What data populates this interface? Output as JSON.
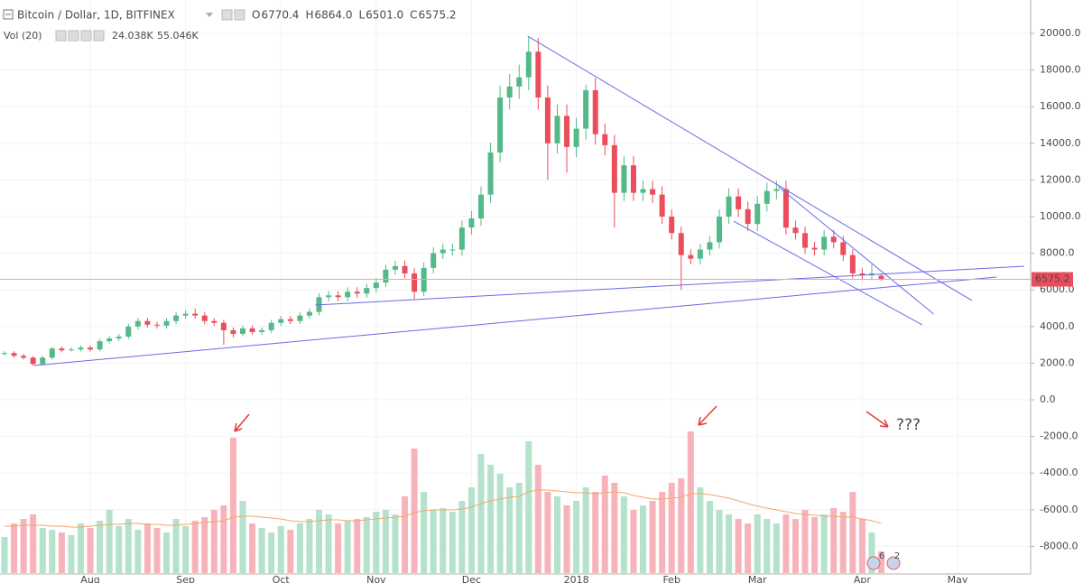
{
  "chart_data": {
    "type": "candlestick",
    "title": "Bitcoin / Dollar, 1D, BITFINEX",
    "ohlc_prefixes": [
      "O",
      "H",
      "L",
      "C"
    ],
    "last_labels": {
      "open": "6770.4",
      "high": "6864.0",
      "low": "6501.0",
      "close": "6575.2"
    },
    "volume_label": "Vol (20)",
    "last_volume_label": "24.038K",
    "last_volume_ma_label": "55.046K",
    "categories": [
      null,
      null,
      null,
      null,
      null,
      null,
      null,
      null,
      null,
      "Aug",
      null,
      null,
      null,
      null,
      null,
      null,
      null,
      null,
      null,
      "Sep",
      null,
      null,
      null,
      null,
      null,
      null,
      null,
      null,
      null,
      "Oct",
      null,
      null,
      null,
      null,
      null,
      null,
      null,
      null,
      null,
      "Nov",
      null,
      null,
      null,
      null,
      null,
      null,
      null,
      null,
      null,
      "Dec",
      null,
      null,
      null,
      null,
      null,
      null,
      null,
      null,
      null,
      null,
      "2018",
      null,
      null,
      null,
      null,
      null,
      null,
      null,
      null,
      null,
      "Feb",
      null,
      null,
      null,
      null,
      null,
      null,
      null,
      null,
      "Mar",
      null,
      null,
      null,
      null,
      null,
      null,
      null,
      null,
      null,
      null,
      "Apr",
      null,
      null,
      null,
      null,
      null,
      null,
      null,
      null,
      null,
      "May",
      null,
      null,
      null,
      null,
      null,
      null,
      null
    ],
    "open": [
      2500,
      2550,
      2400,
      2300,
      1950,
      2300,
      2800,
      2700,
      2750,
      2850,
      2750,
      3200,
      3350,
      3450,
      4000,
      4300,
      4100,
      4050,
      4300,
      4600,
      4700,
      4600,
      4300,
      4200,
      3800,
      3600,
      3900,
      3700,
      3800,
      4200,
      4400,
      4300,
      4600,
      4800,
      5600,
      5700,
      5600,
      5900,
      5800,
      6100,
      6400,
      7100,
      7300,
      6900,
      5900,
      7200,
      8000,
      8200,
      8200,
      9400,
      9900,
      11200,
      13500,
      16500,
      17100,
      17600,
      19000,
      16500,
      14000,
      15500,
      13800,
      14800,
      16900,
      14500,
      13900,
      11300,
      12800,
      11300,
      11500,
      11200,
      10000,
      9100,
      7900,
      7700,
      8200,
      8600,
      10000,
      11100,
      10400,
      9600,
      10700,
      11400,
      11500,
      9400,
      9100,
      8300,
      8200,
      8900,
      8600,
      7900,
      6900,
      6800,
      6770.4,
      null,
      null,
      null,
      null,
      null,
      null,
      null,
      null,
      null,
      null,
      null,
      null,
      null,
      null,
      null
    ],
    "high": [
      2650,
      2650,
      2500,
      2390,
      2390,
      2900,
      2910,
      2860,
      2960,
      2960,
      3330,
      3480,
      3590,
      4160,
      4470,
      4470,
      4260,
      4470,
      4780,
      4890,
      4980,
      4780,
      4470,
      4370,
      3950,
      4060,
      4060,
      3950,
      4370,
      4580,
      4580,
      4780,
      4990,
      5820,
      5930,
      5930,
      6140,
      6140,
      6340,
      6660,
      7380,
      7590,
      7600,
      7180,
      7490,
      8320,
      8530,
      8530,
      9780,
      10300,
      11650,
      14040,
      17160,
      17780,
      18300,
      19800,
      19760,
      17160,
      16120,
      16120,
      15390,
      17200,
      17580,
      15080,
      14460,
      13310,
      13310,
      11960,
      11960,
      11650,
      10400,
      9460,
      8220,
      8530,
      8940,
      10400,
      11540,
      11540,
      10820,
      11130,
      11860,
      11960,
      11960,
      9780,
      9460,
      8630,
      9260,
      9260,
      8940,
      8220,
      7180,
      7400,
      6864,
      null,
      null,
      null,
      null,
      null,
      null,
      null,
      null,
      null,
      null,
      null,
      null,
      null,
      null,
      null
    ],
    "low": [
      2400,
      2300,
      2200,
      1850,
      1870,
      2200,
      2590,
      2640,
      2640,
      2640,
      2640,
      3070,
      3220,
      3310,
      3840,
      3940,
      3890,
      3890,
      4130,
      4420,
      4420,
      4130,
      4030,
      3000,
      3400,
      3460,
      3550,
      3550,
      3650,
      4030,
      4130,
      4130,
      4420,
      4610,
      5380,
      5380,
      5380,
      5570,
      5570,
      5860,
      6140,
      6820,
      6620,
      5500,
      5660,
      6910,
      7680,
      7870,
      7870,
      9020,
      9500,
      10750,
      12960,
      15840,
      16420,
      16900,
      15840,
      12000,
      13440,
      12400,
      13250,
      14210,
      13920,
      13340,
      9400,
      10850,
      10850,
      10850,
      10750,
      9600,
      8740,
      6000,
      7390,
      7390,
      7870,
      8260,
      9600,
      9980,
      9220,
      9220,
      10270,
      10940,
      9020,
      8740,
      7970,
      7870,
      7870,
      8260,
      7580,
      6620,
      6530,
      6530,
      6501,
      null,
      null,
      null,
      null,
      null,
      null,
      null,
      null,
      null,
      null,
      null,
      null,
      null,
      null,
      null
    ],
    "close": [
      2550,
      2400,
      2300,
      1950,
      2300,
      2800,
      2700,
      2750,
      2850,
      2750,
      3200,
      3350,
      3450,
      4000,
      4300,
      4100,
      4050,
      4300,
      4600,
      4700,
      4600,
      4300,
      4200,
      3800,
      3600,
      3900,
      3700,
      3800,
      4200,
      4400,
      4300,
      4600,
      4800,
      5600,
      5700,
      5600,
      5900,
      5800,
      6100,
      6400,
      7100,
      7300,
      6900,
      5900,
      7200,
      8000,
      8200,
      8200,
      9400,
      9900,
      11200,
      13500,
      16500,
      17100,
      17600,
      19000,
      16500,
      14000,
      15500,
      13800,
      14800,
      16900,
      14500,
      13900,
      11300,
      12800,
      11300,
      11500,
      11200,
      10000,
      9100,
      7900,
      7700,
      8200,
      8600,
      10000,
      11100,
      10400,
      9600,
      10700,
      11400,
      11500,
      9400,
      9100,
      8300,
      8200,
      8900,
      8600,
      7900,
      6900,
      6800,
      6900,
      6575.2,
      null,
      null,
      null,
      null,
      null,
      null,
      null,
      null,
      null,
      null,
      null,
      null,
      null,
      null,
      null
    ],
    "volume": [
      40000,
      55000,
      60000,
      65000,
      50000,
      48000,
      45000,
      42000,
      55000,
      50000,
      58000,
      70000,
      52000,
      60000,
      48000,
      55000,
      50000,
      45000,
      60000,
      52000,
      58000,
      62000,
      70000,
      75000,
      150000,
      80000,
      55000,
      50000,
      45000,
      52000,
      48000,
      55000,
      60000,
      70000,
      65000,
      55000,
      58000,
      60000,
      62000,
      68000,
      70000,
      65000,
      85000,
      138000,
      90000,
      70000,
      72000,
      68000,
      80000,
      95000,
      132000,
      120000,
      110000,
      95000,
      100000,
      146000,
      120000,
      90000,
      85000,
      75000,
      80000,
      95000,
      90000,
      108000,
      100000,
      85000,
      70000,
      75000,
      80000,
      90000,
      100000,
      105000,
      157000,
      95000,
      80000,
      70000,
      65000,
      60000,
      55000,
      65000,
      60000,
      55000,
      65000,
      60000,
      70000,
      62000,
      65000,
      72000,
      68000,
      90000,
      60000,
      45000,
      24038,
      null,
      null,
      null,
      null,
      null,
      null,
      null,
      null,
      null,
      null,
      null,
      null,
      null,
      null,
      null
    ],
    "volume_ma": [
      52000,
      52000,
      53000,
      53000,
      53000,
      52000,
      52000,
      51000,
      51000,
      52000,
      53000,
      54000,
      54000,
      55000,
      55000,
      54000,
      54000,
      53000,
      53000,
      54000,
      55000,
      56000,
      57000,
      58000,
      62000,
      63000,
      63000,
      62000,
      61000,
      60000,
      58000,
      57000,
      57000,
      58000,
      59000,
      59000,
      58000,
      58000,
      59000,
      60000,
      61000,
      62000,
      63000,
      67000,
      69000,
      70000,
      70000,
      70000,
      71000,
      73000,
      77000,
      80000,
      82000,
      84000,
      85000,
      90000,
      92000,
      92000,
      91000,
      90000,
      89000,
      89000,
      88000,
      89000,
      90000,
      89000,
      86000,
      84000,
      82000,
      82000,
      83000,
      84000,
      88000,
      88000,
      87000,
      85000,
      83000,
      80000,
      77000,
      74000,
      72000,
      70000,
      68000,
      66000,
      65000,
      64000,
      63000,
      63000,
      62000,
      62000,
      60000,
      58000,
      55046,
      null,
      null,
      null,
      null,
      null,
      null,
      null,
      null,
      null,
      null,
      null,
      null,
      null,
      null,
      null
    ],
    "ylim": [
      -9507,
      21823
    ],
    "yticks": [
      {
        "value": 20000,
        "label": "20000.0"
      },
      {
        "value": 18000,
        "label": "18000.0"
      },
      {
        "value": 16000,
        "label": "16000.0"
      },
      {
        "value": 14000,
        "label": "14000.0"
      },
      {
        "value": 12000,
        "label": "12000.0"
      },
      {
        "value": 10000,
        "label": "10000.0"
      },
      {
        "value": 8000,
        "label": "8000.0"
      },
      {
        "value": 6000,
        "label": "6000.0"
      },
      {
        "value": 4000,
        "label": "4000.0"
      },
      {
        "value": 2000,
        "label": "2000.0"
      },
      {
        "value": 0,
        "label": "0.0"
      },
      {
        "value": -2000,
        "label": "-2000.0"
      },
      {
        "value": -4000,
        "label": "-4000.0"
      },
      {
        "value": -6000,
        "label": "-6000.0"
      },
      {
        "value": -8000,
        "label": "-8000.0"
      }
    ],
    "y2lim": [
      0,
      200000
    ],
    "grid": true,
    "up_color": "#53b987",
    "down_color": "#eb4d5c",
    "volume_up_color": "#b5e2cb",
    "volume_down_color": "#f7b3ba",
    "volume_ma_color": "#f3a76a",
    "trendline_color": "#6a6ae6",
    "annotation_color": "#e53935",
    "trendlines": [
      {
        "x": [
          3.1,
          104.1
        ],
        "y": [
          1870,
          6700
        ]
      },
      {
        "x": [
          32.6,
          107
        ],
        "y": [
          5170,
          7290
        ]
      },
      {
        "x": [
          54.9,
          101.5
        ],
        "y": [
          19850,
          5420
        ]
      },
      {
        "x": [
          81.2,
          97.5
        ],
        "y": [
          11630,
          4680
        ]
      },
      {
        "x": [
          76.5,
          96.3
        ],
        "y": [
          9750,
          4090
        ]
      }
    ],
    "annotation_text": "???",
    "badges": [
      "6",
      "2"
    ]
  }
}
